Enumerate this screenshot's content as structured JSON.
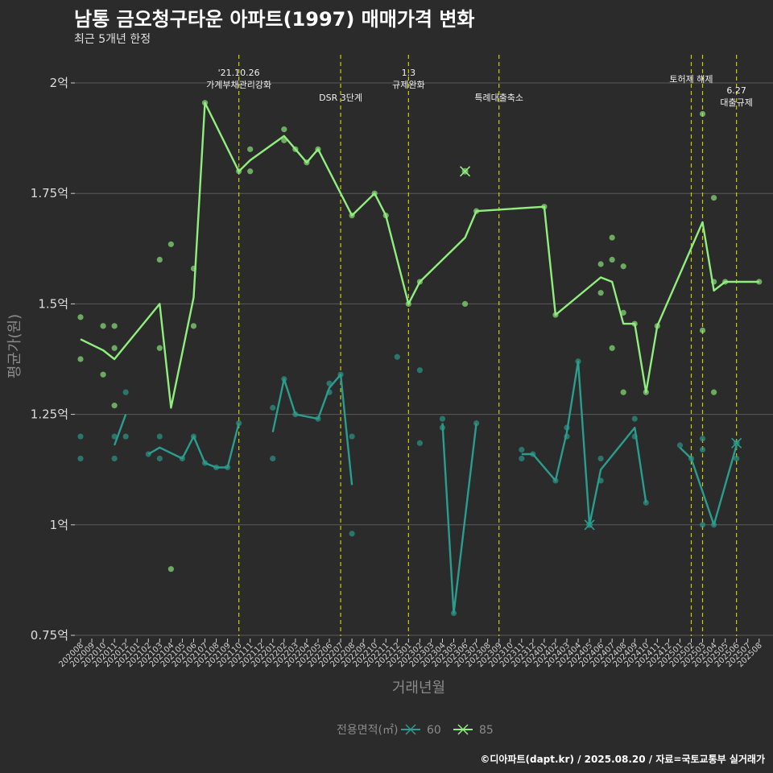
{
  "title": "남통 금오청구타운 아파트(1997) 매매가격 변화",
  "subtitle": "최근 5개년 한정",
  "caption": "©디아파트(dapt.kr) / 2025.08.20 / 자료=국토교통부 실거래가",
  "colors": {
    "s60": "#2a9d8f",
    "s85": "#90ee7e",
    "vline": "#cccc00",
    "grid": "#5a5a5a",
    "bg": "#2b2b2b"
  },
  "chart_data": {
    "type": "line",
    "xlabel": "거래년월",
    "ylabel": "평균가(원)",
    "yticks": [
      {
        "v": 0.75,
        "label": "0.75억"
      },
      {
        "v": 1.0,
        "label": "1억"
      },
      {
        "v": 1.25,
        "label": "1.25억"
      },
      {
        "v": 1.5,
        "label": "1.5억"
      },
      {
        "v": 1.75,
        "label": "1.75억"
      },
      {
        "v": 2.0,
        "label": "2억"
      }
    ],
    "ylim": [
      0.75,
      2.0
    ],
    "months": [
      "202008",
      "202009",
      "202010",
      "202011",
      "202012",
      "202101",
      "202102",
      "202103",
      "202104",
      "202105",
      "202106",
      "202107",
      "202108",
      "202109",
      "202110",
      "202111",
      "202112",
      "202201",
      "202202",
      "202203",
      "202204",
      "202205",
      "202206",
      "202207",
      "202208",
      "202209",
      "202210",
      "202211",
      "202212",
      "202301",
      "202302",
      "202303",
      "202304",
      "202305",
      "202306",
      "202307",
      "202308",
      "202309",
      "202310",
      "202311",
      "202312",
      "202401",
      "202402",
      "202403",
      "202404",
      "202405",
      "202406",
      "202407",
      "202408",
      "202409",
      "202410",
      "202411",
      "202412",
      "202501",
      "202502",
      "202503",
      "202504",
      "202505",
      "202506",
      "202507",
      "202508"
    ],
    "annotations": [
      {
        "x": "202110",
        "lines": [
          "'21.10.26",
          "가계부채관리강화"
        ],
        "level": 1
      },
      {
        "x": "202207",
        "lines": [
          "DSR 3단계"
        ],
        "level": 2
      },
      {
        "x": "202301",
        "lines": [
          "1.3",
          "규제완화"
        ],
        "level": 1
      },
      {
        "x": "202309",
        "lines": [
          "특례대출축소"
        ],
        "level": 2
      },
      {
        "x": "202502",
        "lines": [
          "토허제 해제"
        ],
        "level": 1
      },
      {
        "x": "202503",
        "lines": [],
        "level": 0
      },
      {
        "x": "202506",
        "lines": [
          "6.27",
          "대출규제"
        ],
        "level": 3
      }
    ],
    "legend": {
      "title": "전용면적(㎡)",
      "items": [
        "60",
        "85"
      ]
    },
    "series": [
      {
        "name": "60",
        "color": "#2a9d8f",
        "segments": [
          [
            [
              "202011",
              1.18
            ],
            [
              "202012",
              1.25
            ]
          ],
          [
            [
              "202102",
              1.16
            ],
            [
              "202103",
              1.175
            ],
            [
              "202105",
              1.15
            ],
            [
              "202106",
              1.2
            ],
            [
              "202107",
              1.14
            ],
            [
              "202108",
              1.13
            ],
            [
              "202109",
              1.13
            ],
            [
              "202110",
              1.23
            ]
          ],
          [
            [
              "202201",
              1.21
            ],
            [
              "202202",
              1.33
            ],
            [
              "202203",
              1.25
            ],
            [
              "202205",
              1.24
            ],
            [
              "202206",
              1.31
            ],
            [
              "202207",
              1.34
            ],
            [
              "202208",
              1.09
            ]
          ],
          [
            [
              "202304",
              1.23
            ],
            [
              "202305",
              0.8
            ],
            [
              "202307",
              1.23
            ]
          ],
          [
            [
              "202311",
              1.16
            ],
            [
              "202312",
              1.16
            ],
            [
              "202402",
              1.1
            ],
            [
              "202403",
              1.21
            ],
            [
              "202404",
              1.37
            ],
            [
              "202405",
              1.0
            ],
            [
              "202406",
              1.125
            ],
            [
              "202409",
              1.22
            ],
            [
              "202410",
              1.05
            ]
          ],
          [
            [
              "202501",
              1.175
            ],
            [
              "202502",
              1.15
            ],
            [
              "202504",
              1.0
            ],
            [
              "202506",
              1.18
            ]
          ]
        ],
        "points": [
          [
            "202008",
            1.2
          ],
          [
            "202008",
            1.15
          ],
          [
            "202011",
            1.2
          ],
          [
            "202011",
            1.15
          ],
          [
            "202012",
            1.2
          ],
          [
            "202012",
            1.3
          ],
          [
            "202102",
            1.16
          ],
          [
            "202103",
            1.2
          ],
          [
            "202103",
            1.15
          ],
          [
            "202105",
            1.15
          ],
          [
            "202106",
            1.2
          ],
          [
            "202107",
            1.14
          ],
          [
            "202108",
            1.13
          ],
          [
            "202109",
            1.13
          ],
          [
            "202110",
            1.23
          ],
          [
            "202201",
            1.265
          ],
          [
            "202201",
            1.15
          ],
          [
            "202202",
            1.33
          ],
          [
            "202203",
            1.25
          ],
          [
            "202205",
            1.24
          ],
          [
            "202206",
            1.3
          ],
          [
            "202206",
            1.32
          ],
          [
            "202207",
            1.34
          ],
          [
            "202208",
            1.2
          ],
          [
            "202208",
            0.98
          ],
          [
            "202212",
            1.38
          ],
          [
            "202302",
            1.35
          ],
          [
            "202302",
            1.185
          ],
          [
            "202304",
            1.24
          ],
          [
            "202304",
            1.22
          ],
          [
            "202305",
            0.8
          ],
          [
            "202307",
            1.23
          ],
          [
            "202311",
            1.17
          ],
          [
            "202311",
            1.15
          ],
          [
            "202312",
            1.16
          ],
          [
            "202402",
            1.1
          ],
          [
            "202403",
            1.22
          ],
          [
            "202403",
            1.2
          ],
          [
            "202404",
            1.37
          ],
          [
            "202406",
            1.15
          ],
          [
            "202406",
            1.1
          ],
          [
            "202409",
            1.24
          ],
          [
            "202409",
            1.2
          ],
          [
            "202410",
            1.05
          ],
          [
            "202501",
            1.18
          ],
          [
            "202502",
            1.15
          ],
          [
            "202503",
            1.195
          ],
          [
            "202503",
            1.17
          ],
          [
            "202503",
            1.0
          ],
          [
            "202504",
            1.0
          ],
          [
            "202506",
            1.15
          ]
        ],
        "crosses": [
          [
            "202405",
            1.0
          ],
          [
            "202506",
            1.185
          ]
        ]
      },
      {
        "name": "85",
        "color": "#90ee7e",
        "segments": [
          [
            [
              "202008",
              1.42
            ],
            [
              "202010",
              1.395
            ],
            [
              "202011",
              1.375
            ],
            [
              "202103",
              1.5
            ],
            [
              "202104",
              1.265
            ],
            [
              "202106",
              1.515
            ],
            [
              "202107",
              1.955
            ],
            [
              "202110",
              1.8
            ],
            [
              "202111",
              1.825
            ],
            [
              "202202",
              1.88
            ],
            [
              "202203",
              1.85
            ],
            [
              "202204",
              1.82
            ],
            [
              "202205",
              1.85
            ],
            [
              "202208",
              1.7
            ],
            [
              "202210",
              1.75
            ],
            [
              "202211",
              1.7
            ],
            [
              "202301",
              1.5
            ],
            [
              "202302",
              1.55
            ],
            [
              "202306",
              1.65
            ],
            [
              "202307",
              1.71
            ],
            [
              "202401",
              1.72
            ],
            [
              "202402",
              1.475
            ],
            [
              "202406",
              1.56
            ],
            [
              "202407",
              1.55
            ],
            [
              "202408",
              1.455
            ],
            [
              "202409",
              1.455
            ],
            [
              "202410",
              1.3
            ],
            [
              "202411",
              1.45
            ],
            [
              "202503",
              1.685
            ],
            [
              "202504",
              1.53
            ],
            [
              "202505",
              1.55
            ],
            [
              "202508",
              1.55
            ]
          ]
        ],
        "points": [
          [
            "202008",
            1.47
          ],
          [
            "202008",
            1.375
          ],
          [
            "202010",
            1.45
          ],
          [
            "202010",
            1.34
          ],
          [
            "202011",
            1.45
          ],
          [
            "202011",
            1.4
          ],
          [
            "202011",
            1.27
          ],
          [
            "202103",
            1.6
          ],
          [
            "202103",
            1.4
          ],
          [
            "202104",
            1.635
          ],
          [
            "202104",
            0.9
          ],
          [
            "202106",
            1.58
          ],
          [
            "202106",
            1.45
          ],
          [
            "202107",
            1.955
          ],
          [
            "202110",
            1.8
          ],
          [
            "202111",
            1.85
          ],
          [
            "202111",
            1.8
          ],
          [
            "202202",
            1.895
          ],
          [
            "202202",
            1.87
          ],
          [
            "202203",
            1.85
          ],
          [
            "202204",
            1.82
          ],
          [
            "202205",
            1.85
          ],
          [
            "202208",
            1.7
          ],
          [
            "202210",
            1.75
          ],
          [
            "202211",
            1.7
          ],
          [
            "202301",
            1.5
          ],
          [
            "202302",
            1.55
          ],
          [
            "202306",
            1.5
          ],
          [
            "202307",
            1.71
          ],
          [
            "202401",
            1.72
          ],
          [
            "202402",
            1.475
          ],
          [
            "202406",
            1.59
          ],
          [
            "202406",
            1.525
          ],
          [
            "202407",
            1.65
          ],
          [
            "202407",
            1.6
          ],
          [
            "202407",
            1.4
          ],
          [
            "202408",
            1.585
          ],
          [
            "202408",
            1.48
          ],
          [
            "202408",
            1.3
          ],
          [
            "202409",
            1.455
          ],
          [
            "202410",
            1.3
          ],
          [
            "202411",
            1.45
          ],
          [
            "202503",
            1.93
          ],
          [
            "202503",
            1.44
          ],
          [
            "202504",
            1.74
          ],
          [
            "202504",
            1.55
          ],
          [
            "202504",
            1.3
          ],
          [
            "202505",
            1.55
          ],
          [
            "202508",
            1.55
          ]
        ],
        "crosses": [
          [
            "202306",
            1.8
          ]
        ]
      }
    ]
  }
}
